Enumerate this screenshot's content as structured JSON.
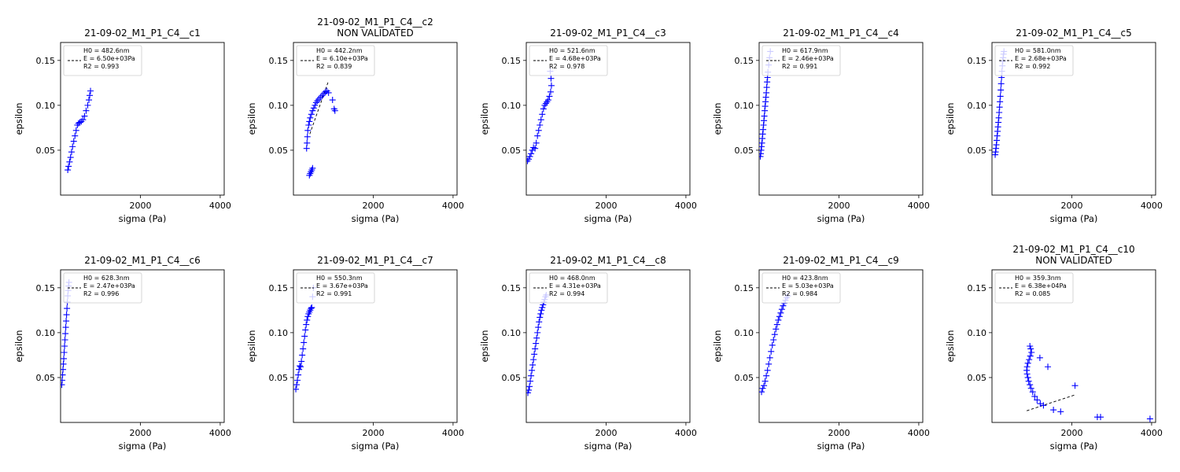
{
  "figure": {
    "xlabel": "sigma (Pa)",
    "ylabel": "epsilon",
    "xlim": [
      0,
      4100
    ],
    "ylim": [
      0.0,
      0.17
    ],
    "xticks": [
      2000,
      4000
    ],
    "yticks": [
      0.05,
      0.1,
      0.15
    ],
    "colors": {
      "points": "#0000ff",
      "fit": "#000000",
      "legend_border": "#cccccc"
    }
  },
  "chart_data": [
    {
      "type": "scatter",
      "title": "21-09-02_M1_P1_C4__c1",
      "legend": [
        "H0 = 482.6nm",
        "E = 6.50e+03Pa",
        "R2 = 0.993"
      ],
      "fit_x": [],
      "fit_y": [],
      "series": [
        {
          "name": "",
          "x": [
            180,
            200,
            225,
            250,
            275,
            300,
            330,
            360,
            390,
            420,
            450,
            480,
            520,
            560,
            600,
            640,
            680,
            710,
            730,
            750
          ],
          "y": [
            0.028,
            0.032,
            0.037,
            0.042,
            0.048,
            0.054,
            0.06,
            0.066,
            0.072,
            0.078,
            0.08,
            0.081,
            0.082,
            0.084,
            0.088,
            0.094,
            0.1,
            0.106,
            0.111,
            0.116
          ]
        }
      ]
    },
    {
      "type": "scatter",
      "title": "21-09-02_M1_P1_C4__c2",
      "subtitle": "NON VALIDATED",
      "legend": [
        "H0 = 442.2nm",
        "E = 6.10e+03Pa",
        "R2 = 0.839"
      ],
      "fit_x": [
        410,
        870
      ],
      "fit_y": [
        0.068,
        0.126
      ],
      "series": [
        {
          "name": "",
          "x": [
            330,
            340,
            350,
            360,
            380,
            400,
            420,
            450,
            480,
            510,
            540,
            570,
            600,
            640,
            680,
            720,
            760,
            800,
            840,
            880,
            980,
            1020,
            1040,
            400,
            420,
            440,
            460,
            480
          ],
          "y": [
            0.052,
            0.058,
            0.065,
            0.072,
            0.078,
            0.082,
            0.086,
            0.09,
            0.094,
            0.097,
            0.1,
            0.103,
            0.105,
            0.107,
            0.109,
            0.111,
            0.113,
            0.115,
            0.116,
            0.114,
            0.106,
            0.096,
            0.094,
            0.022,
            0.024,
            0.026,
            0.028,
            0.03
          ]
        }
      ]
    },
    {
      "type": "scatter",
      "title": "21-09-02_M1_P1_C4__c3",
      "legend": [
        "H0 = 521.6nm",
        "E = 4.68e+03Pa",
        "R2 = 0.978"
      ],
      "fit_x": [],
      "fit_y": [],
      "series": [
        {
          "name": "",
          "x": [
            30,
            60,
            90,
            120,
            150,
            180,
            220,
            250,
            280,
            310,
            340,
            370,
            400,
            430,
            460,
            490,
            520,
            550,
            580,
            610,
            630,
            620,
            600
          ],
          "y": [
            0.038,
            0.04,
            0.043,
            0.046,
            0.05,
            0.053,
            0.052,
            0.058,
            0.066,
            0.072,
            0.078,
            0.084,
            0.09,
            0.096,
            0.1,
            0.102,
            0.104,
            0.106,
            0.11,
            0.115,
            0.122,
            0.13,
            0.138
          ]
        }
      ]
    },
    {
      "type": "scatter",
      "title": "21-09-02_M1_P1_C4__c4",
      "legend": [
        "H0 = 617.9nm",
        "E = 2.46e+03Pa",
        "R2 = 0.991"
      ],
      "fit_x": [],
      "fit_y": [],
      "series": [
        {
          "name": "",
          "x": [
            30,
            40,
            50,
            60,
            70,
            80,
            90,
            100,
            110,
            120,
            130,
            140,
            150,
            160,
            170,
            180,
            190,
            200,
            210,
            220,
            240,
            260,
            280
          ],
          "y": [
            0.043,
            0.046,
            0.05,
            0.054,
            0.058,
            0.063,
            0.068,
            0.073,
            0.078,
            0.083,
            0.088,
            0.094,
            0.099,
            0.104,
            0.109,
            0.114,
            0.12,
            0.126,
            0.131,
            0.137,
            0.145,
            0.153,
            0.16
          ]
        }
      ]
    },
    {
      "type": "scatter",
      "title": "21-09-02_M1_P1_C4__c5",
      "legend": [
        "H0 = 581.0nm",
        "E = 2.68e+03Pa",
        "R2 = 0.992"
      ],
      "fit_x": [],
      "fit_y": [],
      "series": [
        {
          "name": "",
          "x": [
            80,
            90,
            100,
            110,
            120,
            130,
            140,
            150,
            160,
            170,
            180,
            190,
            200,
            210,
            220,
            230,
            240,
            250,
            260,
            270,
            280,
            290,
            300
          ],
          "y": [
            0.045,
            0.048,
            0.052,
            0.056,
            0.061,
            0.066,
            0.071,
            0.076,
            0.081,
            0.086,
            0.092,
            0.098,
            0.104,
            0.11,
            0.117,
            0.124,
            0.131,
            0.138,
            0.144,
            0.149,
            0.153,
            0.157,
            0.16
          ]
        }
      ]
    },
    {
      "type": "scatter",
      "title": "21-09-02_M1_P1_C4__c6",
      "legend": [
        "H0 = 628.3nm",
        "E = 2.47e+03Pa",
        "R2 = 0.996"
      ],
      "fit_x": [],
      "fit_y": [],
      "series": [
        {
          "name": "",
          "x": [
            30,
            40,
            50,
            60,
            70,
            80,
            90,
            100,
            110,
            120,
            130,
            140,
            150,
            160,
            170,
            180,
            190,
            200,
            210
          ],
          "y": [
            0.042,
            0.047,
            0.053,
            0.059,
            0.065,
            0.071,
            0.078,
            0.085,
            0.092,
            0.099,
            0.106,
            0.113,
            0.12,
            0.127,
            0.134,
            0.141,
            0.147,
            0.152,
            0.156
          ]
        }
      ]
    },
    {
      "type": "scatter",
      "title": "21-09-02_M1_P1_C4__c7",
      "legend": [
        "H0 = 550.3nm",
        "E = 3.67e+03Pa",
        "R2 = 0.991"
      ],
      "fit_x": [],
      "fit_y": [],
      "series": [
        {
          "name": "",
          "x": [
            60,
            80,
            100,
            120,
            140,
            160,
            180,
            200,
            220,
            240,
            260,
            280,
            300,
            320,
            340,
            360,
            380,
            400,
            420,
            440,
            460,
            480,
            500
          ],
          "y": [
            0.037,
            0.042,
            0.047,
            0.053,
            0.059,
            0.063,
            0.062,
            0.068,
            0.075,
            0.082,
            0.089,
            0.096,
            0.103,
            0.109,
            0.114,
            0.118,
            0.121,
            0.123,
            0.125,
            0.127,
            0.128,
            0.14,
            0.15
          ]
        }
      ]
    },
    {
      "type": "scatter",
      "title": "21-09-02_M1_P1_C4__c8",
      "legend": [
        "H0 = 468.0nm",
        "E = 4.31e+03Pa",
        "R2 = 0.994"
      ],
      "fit_x": [],
      "fit_y": [],
      "series": [
        {
          "name": "",
          "x": [
            40,
            60,
            80,
            100,
            120,
            140,
            160,
            180,
            200,
            220,
            240,
            260,
            280,
            300,
            320,
            340,
            360,
            380,
            400,
            420,
            440,
            460,
            480,
            500
          ],
          "y": [
            0.033,
            0.036,
            0.04,
            0.046,
            0.052,
            0.058,
            0.064,
            0.07,
            0.076,
            0.082,
            0.088,
            0.094,
            0.1,
            0.106,
            0.112,
            0.117,
            0.121,
            0.125,
            0.128,
            0.131,
            0.134,
            0.137,
            0.14,
            0.142
          ]
        }
      ]
    },
    {
      "type": "scatter",
      "title": "21-09-02_M1_P1_C4__c9",
      "legend": [
        "H0 = 423.8nm",
        "E = 5.03e+03Pa",
        "R2 = 0.984"
      ],
      "fit_x": [],
      "fit_y": [],
      "series": [
        {
          "name": "",
          "x": [
            60,
            90,
            120,
            150,
            180,
            210,
            240,
            270,
            300,
            330,
            360,
            390,
            420,
            450,
            480,
            510,
            540,
            570,
            600,
            630,
            660,
            690,
            720
          ],
          "y": [
            0.034,
            0.038,
            0.041,
            0.046,
            0.052,
            0.058,
            0.065,
            0.072,
            0.079,
            0.086,
            0.092,
            0.098,
            0.104,
            0.109,
            0.114,
            0.118,
            0.122,
            0.126,
            0.13,
            0.133,
            0.136,
            0.139,
            0.141
          ]
        }
      ]
    },
    {
      "type": "scatter",
      "title": "21-09-02_M1_P1_C4__c10",
      "subtitle": "NON VALIDATED",
      "legend": [
        "H0 = 359.3nm",
        "E = 6.38e+04Pa",
        "R2 = 0.085"
      ],
      "fit_x": [
        870,
        2100
      ],
      "fit_y": [
        0.013,
        0.031
      ],
      "series": [
        {
          "name": "",
          "x": [
            950,
            970,
            990,
            960,
            930,
            900,
            880,
            870,
            880,
            900,
            920,
            950,
            980,
            1020,
            1070,
            1130,
            1210,
            1290,
            1200,
            1400,
            1540,
            1720,
            2080,
            2640,
            2720,
            3960
          ],
          "y": [
            0.085,
            0.082,
            0.078,
            0.074,
            0.07,
            0.066,
            0.062,
            0.058,
            0.054,
            0.05,
            0.046,
            0.042,
            0.038,
            0.034,
            0.029,
            0.025,
            0.021,
            0.019,
            0.072,
            0.062,
            0.014,
            0.012,
            0.041,
            0.006,
            0.006,
            0.004
          ]
        }
      ]
    }
  ]
}
